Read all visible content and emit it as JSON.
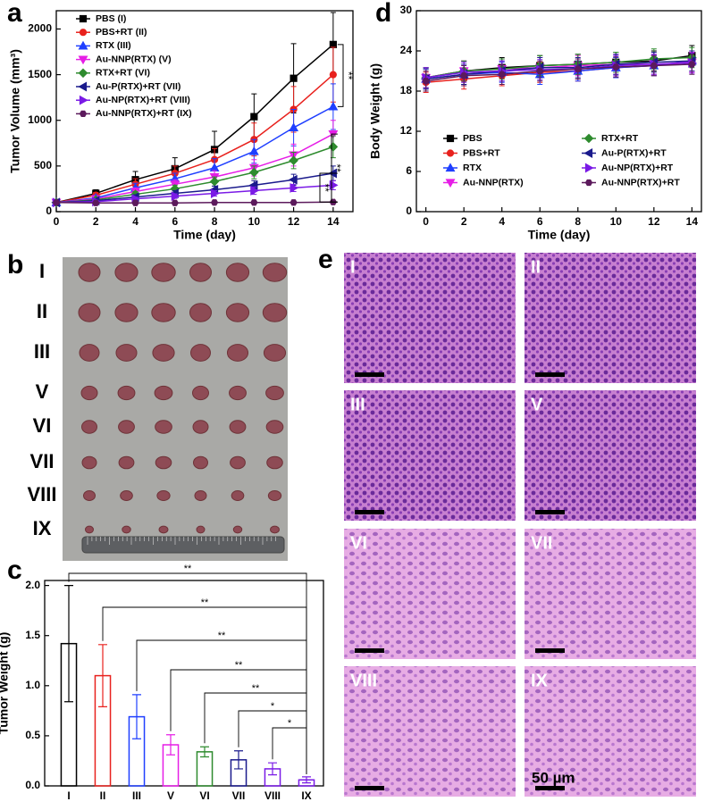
{
  "panel_labels": [
    "a",
    "b",
    "c",
    "d",
    "e"
  ],
  "chart_data": [
    {
      "type": "line",
      "x_label": "Time (day)",
      "y_label": "Tumor Volume (mm³)",
      "x": [
        0,
        2,
        4,
        6,
        8,
        10,
        12,
        14
      ],
      "xlim": [
        0,
        15
      ],
      "xticks": [
        0,
        2,
        4,
        6,
        8,
        10,
        12,
        14
      ],
      "ylim": [
        0,
        2200
      ],
      "yticks": [
        0,
        500,
        1000,
        1500,
        2000
      ],
      "legend": "upper left",
      "series": [
        {
          "name": "PBS (I)",
          "color": "#000000",
          "values": [
            100,
            200,
            350,
            470,
            680,
            1040,
            1460,
            1830
          ],
          "errors": [
            0,
            40,
            90,
            120,
            200,
            250,
            380,
            350
          ]
        },
        {
          "name": "PBS+RT (II)",
          "color": "#e8211d",
          "values": [
            100,
            180,
            300,
            420,
            570,
            790,
            1120,
            1500
          ],
          "errors": [
            0,
            30,
            60,
            80,
            120,
            180,
            250,
            300
          ]
        },
        {
          "name": "RTX (III)",
          "color": "#1f3fff",
          "values": [
            100,
            150,
            260,
            360,
            480,
            660,
            920,
            1150
          ],
          "errors": [
            0,
            30,
            50,
            60,
            100,
            130,
            200,
            250
          ]
        },
        {
          "name": "Au-NNP(RTX) (V)",
          "color": "#e61ee6",
          "values": [
            100,
            140,
            220,
            300,
            380,
            480,
            620,
            850
          ],
          "errors": [
            0,
            20,
            40,
            50,
            70,
            90,
            120,
            150
          ]
        },
        {
          "name": "RTX+RT (VI)",
          "color": "#2e8b2e",
          "values": [
            100,
            130,
            190,
            250,
            330,
            430,
            560,
            710
          ],
          "errors": [
            0,
            20,
            30,
            40,
            50,
            70,
            90,
            120
          ]
        },
        {
          "name": "Au-P(RTX)+RT (VII)",
          "color": "#1a1a8c",
          "values": [
            100,
            120,
            160,
            200,
            240,
            290,
            350,
            420
          ],
          "errors": [
            0,
            15,
            25,
            30,
            40,
            50,
            60,
            80
          ]
        },
        {
          "name": "Au-NP(RTX)+RT (VIII)",
          "color": "#7a1ae6",
          "values": [
            100,
            110,
            140,
            170,
            200,
            230,
            260,
            290
          ],
          "errors": [
            0,
            15,
            20,
            25,
            30,
            40,
            40,
            50
          ]
        },
        {
          "name": "Au-NNP(RTX)+RT (IX)",
          "color": "#5c1a5c",
          "values": [
            100,
            95,
            95,
            95,
            100,
            100,
            100,
            105
          ],
          "errors": [
            0,
            10,
            10,
            10,
            10,
            10,
            10,
            10
          ]
        }
      ],
      "significance": [
        {
          "text": "**",
          "between": [
            "PBS (I)",
            "RTX (III)"
          ]
        },
        {
          "text": "**",
          "between": [
            "Au-NNP(RTX) (V)",
            "Au-NNP(RTX)+RT (IX)"
          ]
        },
        {
          "text": "**",
          "between": [
            "Au-P(RTX)+RT (VII)",
            "Au-NNP(RTX)+RT (IX)"
          ]
        }
      ]
    },
    {
      "type": "line",
      "x_label": "Time (day)",
      "y_label": "Body Weight (g)",
      "x": [
        0,
        2,
        4,
        6,
        8,
        10,
        12,
        14
      ],
      "xlim": [
        -0.5,
        14.5
      ],
      "xticks": [
        0,
        2,
        4,
        6,
        8,
        10,
        12,
        14
      ],
      "ylim": [
        0,
        30
      ],
      "yticks": [
        0,
        6,
        12,
        18,
        24,
        30
      ],
      "legend": "lower center",
      "series": [
        {
          "name": "PBS",
          "color": "#000000",
          "values": [
            20,
            21,
            21.5,
            21.8,
            22,
            22.3,
            22.5,
            23.3
          ],
          "errors": [
            1.5,
            1.5,
            1.5,
            1.5,
            1.5,
            1.5,
            1.5,
            1.5
          ]
        },
        {
          "name": "PBS+RT",
          "color": "#e8211d",
          "values": [
            19.3,
            19.8,
            20.3,
            20.8,
            21,
            21.5,
            21.8,
            22.3
          ],
          "errors": [
            1.5,
            1.5,
            1.5,
            1.5,
            1.5,
            1.5,
            1.5,
            1.5
          ]
        },
        {
          "name": "RTX",
          "color": "#1f3fff",
          "values": [
            19.8,
            20.5,
            20.8,
            20.5,
            21,
            21.5,
            21.8,
            22.5
          ],
          "errors": [
            1.5,
            1.5,
            1.5,
            1.5,
            1.5,
            1.5,
            1.5,
            1.5
          ]
        },
        {
          "name": "Au-NNP(RTX)",
          "color": "#e61ee6",
          "values": [
            20,
            21,
            21.3,
            21.5,
            21.8,
            22,
            22,
            22.3
          ],
          "errors": [
            1.5,
            1.5,
            1.5,
            1.5,
            1.5,
            1.5,
            1.5,
            1.5
          ]
        },
        {
          "name": "RTX+RT",
          "color": "#2e8b2e",
          "values": [
            20,
            21,
            21.3,
            21.8,
            22,
            22.3,
            22.8,
            23
          ],
          "errors": [
            1.5,
            1.5,
            1.5,
            1.5,
            1.5,
            1.5,
            1.5,
            1.5
          ]
        },
        {
          "name": "Au-P(RTX)+RT",
          "color": "#1a1a8c",
          "values": [
            19.8,
            20.5,
            21,
            21.5,
            21.5,
            22,
            22.3,
            22.5
          ],
          "errors": [
            1.5,
            1.5,
            1.5,
            1.5,
            1.5,
            1.5,
            1.5,
            1.5
          ]
        },
        {
          "name": "Au-NP(RTX)+RT",
          "color": "#7a1ae6",
          "values": [
            20,
            20.8,
            21,
            21.2,
            21.3,
            21.8,
            22,
            22.2
          ],
          "errors": [
            1.5,
            1.5,
            1.5,
            1.5,
            1.5,
            1.5,
            1.5,
            1.5
          ]
        },
        {
          "name": "Au-NNP(RTX)+RT",
          "color": "#5c1a5c",
          "values": [
            19.5,
            20.3,
            20.5,
            21,
            21.3,
            21.6,
            21.8,
            22
          ],
          "errors": [
            1.5,
            1.5,
            1.5,
            1.5,
            1.5,
            1.5,
            1.5,
            1.5
          ]
        }
      ]
    },
    {
      "type": "bar",
      "y_label": "Tumor Weight (g)",
      "categories": [
        "I",
        "II",
        "III",
        "V",
        "VI",
        "VII",
        "VIII",
        "IX"
      ],
      "values": [
        1.42,
        1.1,
        0.69,
        0.41,
        0.34,
        0.26,
        0.17,
        0.06
      ],
      "errors": [
        0.58,
        0.31,
        0.22,
        0.1,
        0.05,
        0.09,
        0.06,
        0.03
      ],
      "colors": [
        "#000000",
        "#e8211d",
        "#1f3fff",
        "#e61ee6",
        "#2e8b2e",
        "#1a1a8c",
        "#7a1ae6",
        "#7a1ae6"
      ],
      "ylim": [
        0,
        2.05
      ],
      "yticks": [
        {
          "value": 0,
          "label": "0.0"
        },
        0.5,
        {
          "value": 1,
          "label": "1.0"
        },
        1.5,
        {
          "value": 2,
          "label": "2.0"
        }
      ],
      "significance": [
        {
          "text": "**",
          "between": [
            "I",
            "IX"
          ]
        },
        {
          "text": "**",
          "between": [
            "II",
            "IX"
          ]
        },
        {
          "text": "**",
          "between": [
            "III",
            "IX"
          ]
        },
        {
          "text": "**",
          "between": [
            "V",
            "IX"
          ]
        },
        {
          "text": "**",
          "between": [
            "VI",
            "IX"
          ]
        },
        {
          "text": "*",
          "between": [
            "VII",
            "IX"
          ]
        },
        {
          "text": "*",
          "between": [
            "VIII",
            "IX"
          ]
        }
      ]
    }
  ],
  "photo_b": {
    "row_labels": [
      "I",
      "II",
      "III",
      "V",
      "VI",
      "VII",
      "VIII",
      "IX"
    ]
  },
  "histology_e": {
    "labels": [
      "I",
      "II",
      "III",
      "V",
      "VI",
      "VII",
      "VIII",
      "IX"
    ],
    "scale_bar": "50 µm"
  }
}
